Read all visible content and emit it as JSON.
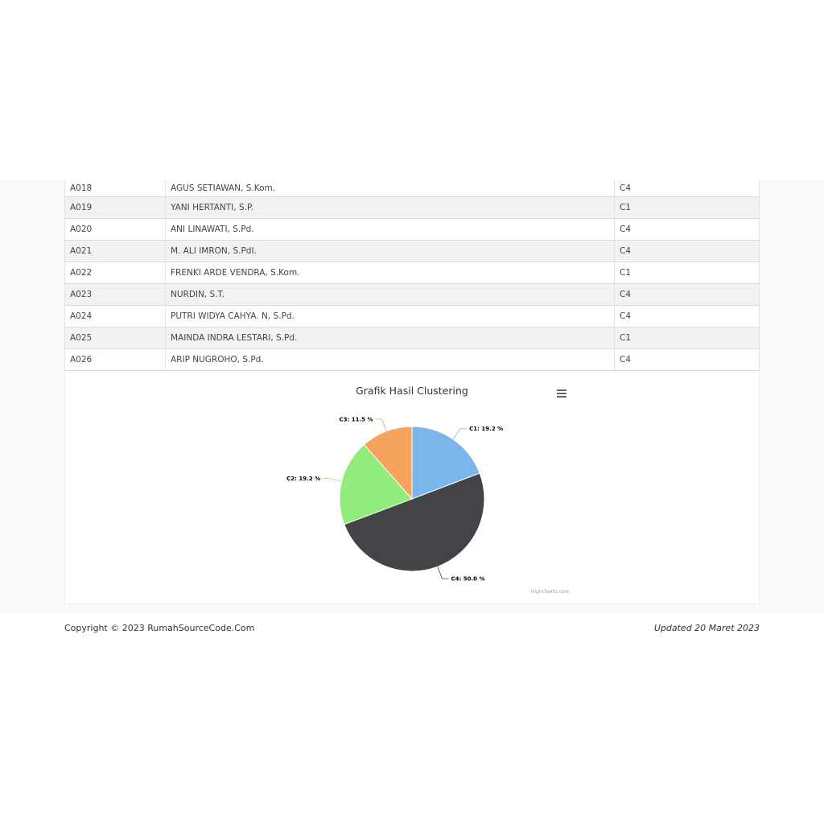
{
  "table": {
    "rows": [
      {
        "code": "A018",
        "name": "AGUS SETIAWAN, S.Kom.",
        "cluster": "C4"
      },
      {
        "code": "A019",
        "name": "YANI HERTANTI, S.P.",
        "cluster": "C1"
      },
      {
        "code": "A020",
        "name": "ANI LINAWATI, S.Pd.",
        "cluster": "C4"
      },
      {
        "code": "A021",
        "name": "M. ALI IMRON, S.PdI.",
        "cluster": "C4"
      },
      {
        "code": "A022",
        "name": "FRENKI ARDE VENDRA, S.Kom.",
        "cluster": "C1"
      },
      {
        "code": "A023",
        "name": "NURDIN, S.T.",
        "cluster": "C4"
      },
      {
        "code": "A024",
        "name": "PUTRI WIDYA CAHYA. N, S.Pd.",
        "cluster": "C4"
      },
      {
        "code": "A025",
        "name": "MAINDA INDRA LESTARI, S.Pd.",
        "cluster": "C1"
      },
      {
        "code": "A026",
        "name": "ARIP NUGROHO, S.Pd.",
        "cluster": "C4"
      }
    ]
  },
  "chart_data": {
    "type": "pie",
    "title": "Grafik Hasil Clustering",
    "slices": [
      {
        "name": "C1",
        "value": 19.2,
        "label": "C1: 19.2 %",
        "color": "#7cb5ec"
      },
      {
        "name": "C4",
        "value": 50.0,
        "label": "C4: 50.0 %",
        "color": "#434348"
      },
      {
        "name": "C2",
        "value": 19.2,
        "label": "C2: 19.2 %",
        "color": "#90ed7d"
      },
      {
        "name": "C3",
        "value": 11.5,
        "label": "C3: 11.5 %",
        "color": "#f7a35c"
      }
    ],
    "credits": "Highcharts.com"
  },
  "chart_menu_icon": "hamburger-menu-icon",
  "footer": {
    "copyright": "Copyright © 2023 RumahSourceCode.Com",
    "updated": "Updated 20 Maret 2023"
  }
}
